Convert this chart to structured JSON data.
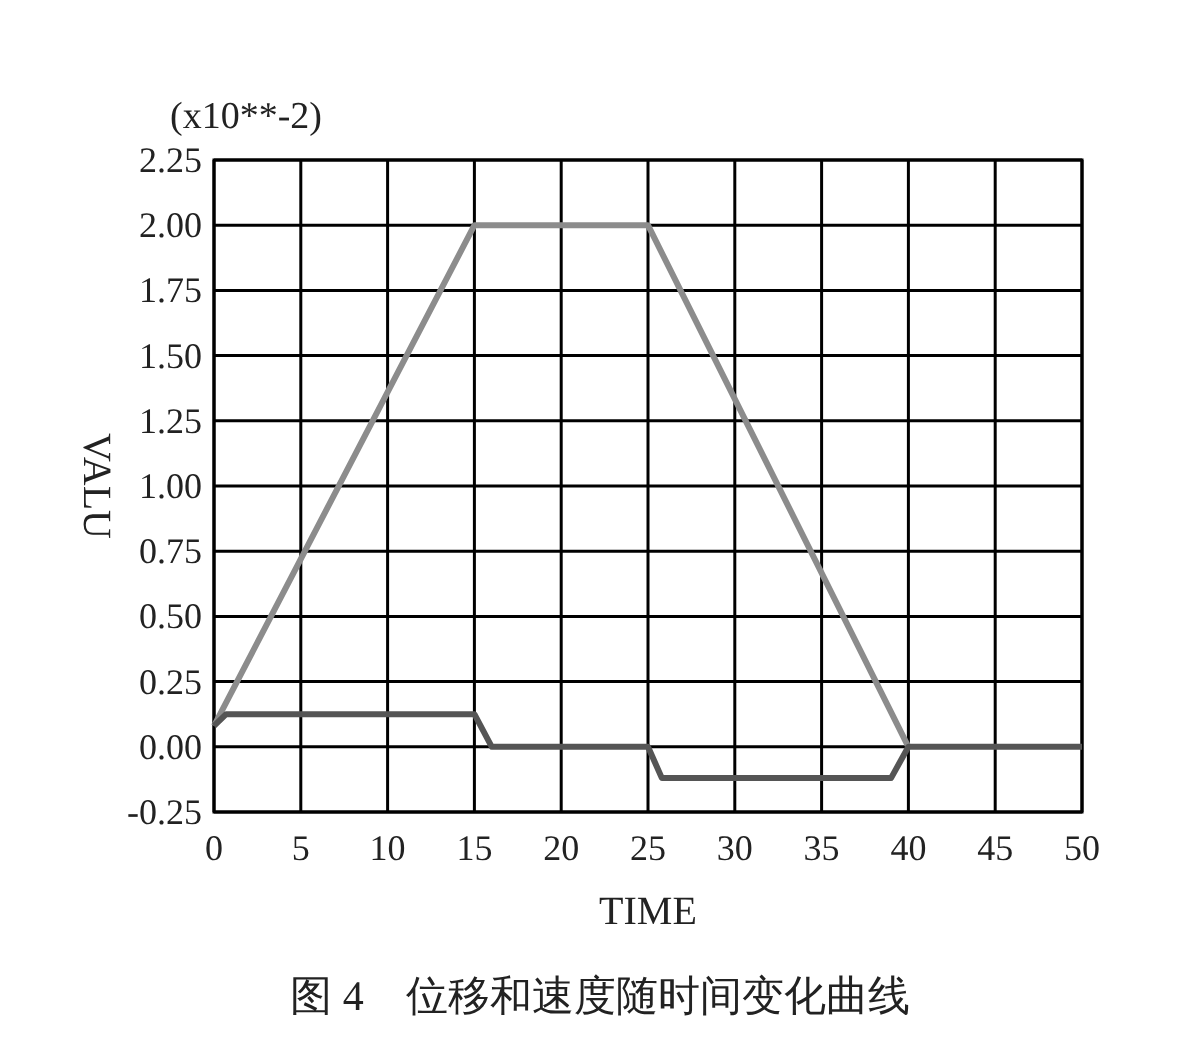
{
  "chart_data": {
    "type": "line",
    "xlabel": "TIME",
    "ylabel": "VALU",
    "series": [
      {
        "color": "#8c8c8c",
        "x": [
          0,
          15,
          25,
          40
        ],
        "values": [
          0.08,
          2.0,
          2.0,
          0.0
        ]
      },
      {
        "color": "#555555",
        "x": [
          0,
          0.7,
          15,
          16,
          25,
          25.8,
          39,
          40,
          50
        ],
        "values": [
          0.08,
          0.125,
          0.125,
          0.0,
          0.0,
          -0.12,
          -0.12,
          0.0,
          0.0
        ]
      }
    ],
    "xlim": [
      0,
      50
    ],
    "xticks": [
      0,
      5,
      10,
      15,
      20,
      25,
      30,
      35,
      40,
      45,
      50
    ],
    "ylim": [
      -0.25,
      2.25
    ],
    "yticks": [
      {
        "value": -0.25,
        "label": "-0.25"
      },
      {
        "value": 0,
        "label": "0.00"
      },
      {
        "value": 0.25,
        "label": "0.25"
      },
      {
        "value": 0.5,
        "label": "0.50"
      },
      {
        "value": 0.75,
        "label": "0.75"
      },
      {
        "value": 1,
        "label": "1.00"
      },
      {
        "value": 1.25,
        "label": "1.25"
      },
      {
        "value": 1.5,
        "label": "1.50"
      },
      {
        "value": 1.75,
        "label": "1.75"
      },
      {
        "value": 2,
        "label": "2.00"
      },
      {
        "value": 2.25,
        "label": "2.25"
      }
    ],
    "grid": true,
    "line_style": "solid",
    "marker": "none",
    "annotations": [
      "(x10**-2)",
      "图 4　位移和速度随时间变化曲线"
    ]
  }
}
